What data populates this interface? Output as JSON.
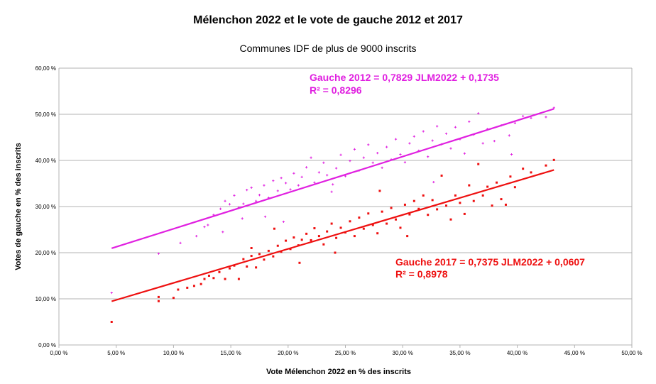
{
  "chart_data": {
    "type": "scatter",
    "title": "Mélenchon 2022 et le vote de gauche 2012 et 2017",
    "subtitle": "Communes IDF de plus de 9000 inscrits",
    "xlabel": "Vote Mélenchon 2022 en % des inscrits",
    "ylabel": "Votes de gauche en % des inscrits",
    "xlim": [
      0,
      50
    ],
    "ylim": [
      0,
      60
    ],
    "x_ticks": [
      "0,00 %",
      "5,00 %",
      "10,00 %",
      "15,00 %",
      "20,00 %",
      "25,00 %",
      "30,00 %",
      "35,00 %",
      "40,00 %",
      "45,00 %",
      "50,00 %"
    ],
    "y_ticks": [
      "0,00 %",
      "10,00 %",
      "20,00 %",
      "30,00 %",
      "40,00 %",
      "50,00 %",
      "60,00 %"
    ],
    "grid": "horizontal",
    "series": [
      {
        "color": "#e020e0",
        "marker": "plus",
        "trendline": {
          "slope": 0.7829,
          "intercept": 17.35,
          "x_range": [
            4.6,
            43.2
          ]
        },
        "equation": "Gauche 2012 = 0,7829 JLM2022 + 0,1735",
        "r2": "R² = 0,8296",
        "points": [
          [
            4.6,
            11.3
          ],
          [
            8.7,
            19.8
          ],
          [
            10.6,
            22.1
          ],
          [
            12.0,
            23.6
          ],
          [
            12.7,
            25.6
          ],
          [
            13.0,
            26.0
          ],
          [
            13.5,
            28.2
          ],
          [
            14.1,
            29.5
          ],
          [
            14.5,
            31.2
          ],
          [
            14.9,
            30.5
          ],
          [
            15.3,
            32.4
          ],
          [
            15.7,
            29.8
          ],
          [
            16.1,
            30.6
          ],
          [
            16.4,
            33.6
          ],
          [
            16.8,
            34.1
          ],
          [
            17.2,
            31.2
          ],
          [
            17.5,
            32.5
          ],
          [
            17.9,
            34.6
          ],
          [
            18.3,
            31.9
          ],
          [
            18.7,
            35.6
          ],
          [
            19.1,
            33.4
          ],
          [
            19.4,
            36.2
          ],
          [
            19.8,
            35.1
          ],
          [
            20.2,
            33.7
          ],
          [
            20.5,
            37.2
          ],
          [
            20.9,
            34.6
          ],
          [
            21.2,
            36.4
          ],
          [
            21.6,
            38.5
          ],
          [
            22.0,
            40.6
          ],
          [
            22.3,
            35.2
          ],
          [
            22.7,
            37.4
          ],
          [
            23.1,
            39.5
          ],
          [
            23.4,
            36.8
          ],
          [
            23.8,
            33.2
          ],
          [
            24.2,
            38.3
          ],
          [
            24.6,
            41.2
          ],
          [
            25.0,
            36.6
          ],
          [
            25.4,
            39.9
          ],
          [
            25.8,
            42.4
          ],
          [
            26.2,
            37.8
          ],
          [
            26.6,
            40.6
          ],
          [
            27.0,
            43.4
          ],
          [
            27.4,
            39.5
          ],
          [
            27.8,
            41.6
          ],
          [
            28.2,
            38.4
          ],
          [
            28.6,
            42.9
          ],
          [
            29.0,
            40.2
          ],
          [
            29.4,
            44.6
          ],
          [
            29.8,
            41.3
          ],
          [
            30.2,
            39.6
          ],
          [
            30.6,
            43.7
          ],
          [
            31.0,
            45.2
          ],
          [
            31.4,
            42.1
          ],
          [
            31.8,
            46.3
          ],
          [
            32.2,
            40.8
          ],
          [
            32.6,
            44.3
          ],
          [
            33.0,
            47.4
          ],
          [
            33.4,
            43.5
          ],
          [
            33.8,
            45.8
          ],
          [
            34.2,
            42.6
          ],
          [
            34.6,
            47.2
          ],
          [
            35.0,
            44.6
          ],
          [
            35.4,
            41.5
          ],
          [
            35.8,
            48.4
          ],
          [
            36.2,
            45.6
          ],
          [
            36.6,
            50.2
          ],
          [
            37.0,
            43.7
          ],
          [
            37.4,
            46.8
          ],
          [
            38.0,
            44.2
          ],
          [
            38.6,
            47.6
          ],
          [
            39.3,
            45.4
          ],
          [
            39.8,
            48.1
          ],
          [
            40.5,
            49.6
          ],
          [
            41.2,
            49.2
          ],
          [
            42.5,
            49.4
          ],
          [
            43.2,
            51.4
          ],
          [
            19.6,
            26.7
          ],
          [
            14.3,
            24.5
          ],
          [
            16.0,
            27.4
          ],
          [
            18.0,
            27.8
          ],
          [
            23.9,
            34.8
          ],
          [
            32.7,
            35.3
          ],
          [
            39.5,
            41.3
          ]
        ]
      },
      {
        "color": "#ee1010",
        "marker": "square",
        "trendline": {
          "slope": 0.7375,
          "intercept": 6.07,
          "x_range": [
            4.6,
            43.2
          ]
        },
        "equation": "Gauche 2017 = 0,7375 JLM2022 + 0,0607",
        "r2": "R² = 0,8978",
        "points": [
          [
            4.6,
            5.0
          ],
          [
            8.7,
            9.5
          ],
          [
            8.7,
            10.4
          ],
          [
            10.0,
            10.2
          ],
          [
            10.4,
            12.0
          ],
          [
            11.2,
            12.4
          ],
          [
            11.8,
            12.8
          ],
          [
            12.4,
            13.2
          ],
          [
            12.7,
            14.3
          ],
          [
            13.1,
            15.0
          ],
          [
            13.5,
            14.5
          ],
          [
            14.0,
            15.8
          ],
          [
            14.5,
            14.3
          ],
          [
            14.9,
            16.6
          ],
          [
            15.3,
            17.2
          ],
          [
            15.7,
            14.3
          ],
          [
            16.1,
            18.6
          ],
          [
            16.4,
            17.0
          ],
          [
            16.8,
            19.3
          ],
          [
            17.2,
            16.8
          ],
          [
            17.5,
            19.7
          ],
          [
            17.9,
            18.5
          ],
          [
            18.3,
            20.4
          ],
          [
            18.7,
            19.2
          ],
          [
            19.1,
            21.5
          ],
          [
            19.4,
            20.2
          ],
          [
            19.8,
            22.6
          ],
          [
            20.2,
            20.8
          ],
          [
            20.5,
            23.3
          ],
          [
            20.9,
            21.6
          ],
          [
            21.2,
            22.8
          ],
          [
            21.6,
            24.1
          ],
          [
            22.0,
            22.7
          ],
          [
            22.3,
            25.3
          ],
          [
            22.7,
            23.6
          ],
          [
            23.1,
            21.8
          ],
          [
            23.4,
            24.6
          ],
          [
            23.8,
            26.3
          ],
          [
            24.2,
            23.2
          ],
          [
            24.6,
            25.4
          ],
          [
            25.0,
            24.4
          ],
          [
            25.4,
            26.8
          ],
          [
            25.8,
            23.6
          ],
          [
            26.2,
            27.6
          ],
          [
            26.6,
            25.2
          ],
          [
            27.0,
            28.5
          ],
          [
            27.4,
            26.0
          ],
          [
            27.8,
            24.2
          ],
          [
            28.2,
            28.9
          ],
          [
            28.6,
            26.3
          ],
          [
            29.0,
            29.7
          ],
          [
            29.4,
            27.2
          ],
          [
            29.8,
            25.4
          ],
          [
            30.2,
            30.4
          ],
          [
            30.6,
            28.3
          ],
          [
            31.0,
            31.2
          ],
          [
            31.4,
            29.5
          ],
          [
            31.8,
            32.4
          ],
          [
            32.2,
            28.2
          ],
          [
            32.6,
            31.4
          ],
          [
            33.0,
            29.4
          ],
          [
            33.4,
            36.7
          ],
          [
            33.8,
            30.2
          ],
          [
            34.2,
            27.2
          ],
          [
            34.6,
            32.4
          ],
          [
            35.0,
            30.8
          ],
          [
            35.4,
            28.4
          ],
          [
            35.8,
            34.6
          ],
          [
            36.2,
            31.2
          ],
          [
            36.6,
            39.2
          ],
          [
            37.0,
            32.4
          ],
          [
            37.4,
            34.3
          ],
          [
            37.8,
            30.2
          ],
          [
            38.2,
            35.2
          ],
          [
            38.6,
            31.6
          ],
          [
            39.0,
            30.4
          ],
          [
            39.4,
            36.5
          ],
          [
            39.8,
            34.2
          ],
          [
            40.5,
            38.2
          ],
          [
            41.2,
            37.4
          ],
          [
            42.5,
            38.9
          ],
          [
            43.2,
            40.1
          ],
          [
            16.8,
            21.0
          ],
          [
            21.0,
            17.8
          ],
          [
            28.0,
            33.4
          ],
          [
            30.4,
            23.6
          ],
          [
            24.1,
            20.0
          ],
          [
            18.8,
            25.2
          ]
        ]
      }
    ]
  }
}
